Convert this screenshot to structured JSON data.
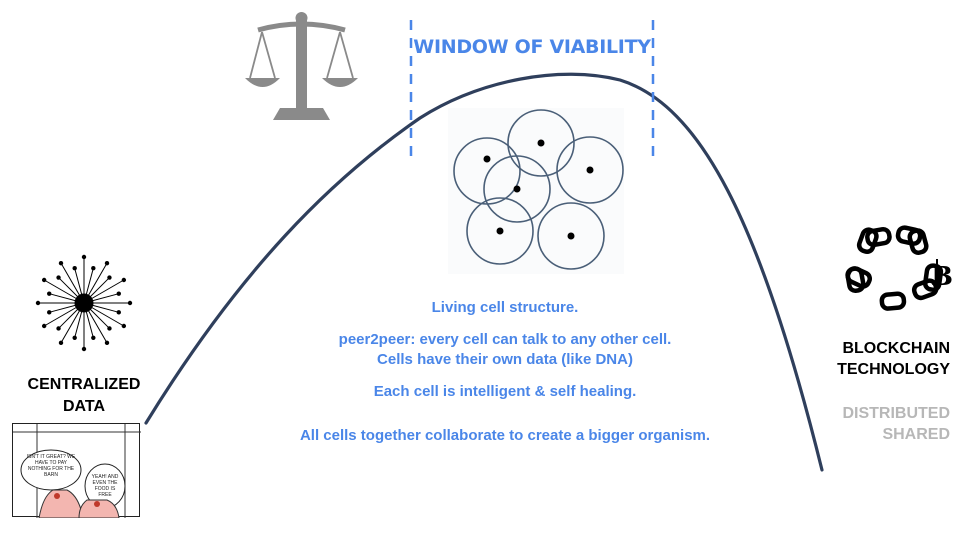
{
  "window": {
    "title": "WINDOW OF VIABILITY"
  },
  "description": {
    "line1": "Living cell structure.",
    "line2": "peer2peer: every cell can talk to any other cell.",
    "line3": "Cells have their own data (like DNA)",
    "line4": "Each cell is intelligent & self healing.",
    "line5": "All cells together collaborate to create a bigger organism."
  },
  "left": {
    "label_line1": "CENTRALIZED",
    "label_line2": "DATA",
    "comic_bubble1": "ISN'T IT GREAT? WE HAVE TO PAY NOTHING FOR THE BARN",
    "comic_bubble2": "YEAH! AND EVEN THE FOOD IS FREE"
  },
  "right": {
    "label_line1": "BLOCKCHAIN",
    "label_line2": "TECHNOLOGY",
    "sub_line1": "DISTRIBUTED",
    "sub_line2": "SHARED"
  },
  "colors": {
    "accent_blue": "#4a86e8",
    "curve": "#2f3f5c",
    "cells": "#4a5f78",
    "grey_text": "#b7b7b7",
    "scale": "#8a8a8a"
  },
  "icons": {
    "scale": "balance-scale-icon",
    "centralized": "hub-spokes-icon",
    "blockchain": "chain-links-bitcoin-icon",
    "cells": "overlapping-cells-icon"
  }
}
